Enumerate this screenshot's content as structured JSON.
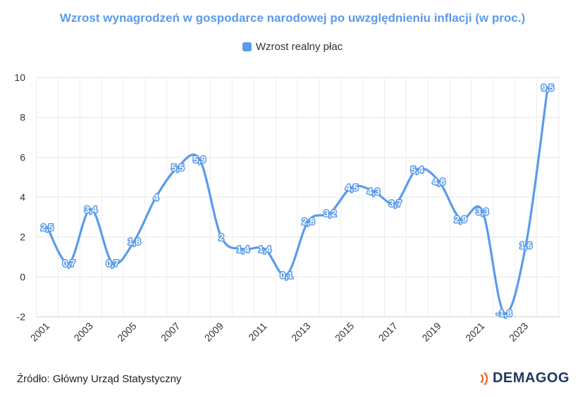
{
  "colors": {
    "accent": "#5B9BEA",
    "brand_text": "#1F3A5C",
    "brand_accent": "#F26B21"
  },
  "brand_name": "DEMAGOG",
  "source_note": "Źródło: Główny Urząd Statystyczny",
  "chart_data": {
    "type": "line",
    "title": "Wzrost wynagrodzeń w gospodarce narodowej po uwzględnieniu inflacji (w proc.)",
    "legend_position": "top-center",
    "grid": true,
    "ylim": [
      -2,
      10
    ],
    "yticks": [
      -2,
      0,
      2,
      4,
      6,
      8,
      10
    ],
    "x": [
      2001,
      2002,
      2003,
      2004,
      2005,
      2006,
      2007,
      2008,
      2009,
      2010,
      2011,
      2012,
      2013,
      2014,
      2015,
      2016,
      2017,
      2018,
      2019,
      2020,
      2021,
      2022,
      2023,
      2024
    ],
    "xtick_labels": [
      "2001",
      "2003",
      "2005",
      "2007",
      "2009",
      "2011",
      "2013",
      "2015",
      "2017",
      "2019",
      "2021",
      "2023"
    ],
    "series": [
      {
        "name": "Wzrost realny płac",
        "values": [
          2.5,
          0.7,
          3.4,
          0.7,
          1.8,
          4,
          5.5,
          5.9,
          2,
          1.4,
          1.4,
          0.1,
          2.8,
          3.2,
          4.5,
          4.3,
          3.7,
          5.4,
          4.8,
          2.9,
          3.3,
          -1.8,
          1.6,
          9.5
        ],
        "labels": [
          "2,5",
          "0,7",
          "3,4",
          "0,7",
          "1,8",
          "4",
          "5,5",
          "5,9",
          "2",
          "1,4",
          "1,4",
          "0,1",
          "2,8",
          "3,2",
          "4,5",
          "4,3",
          "3,7",
          "5,4",
          "4,8",
          "2,9",
          "3,3",
          "-1,8",
          "1,6",
          "9,5"
        ]
      }
    ]
  }
}
